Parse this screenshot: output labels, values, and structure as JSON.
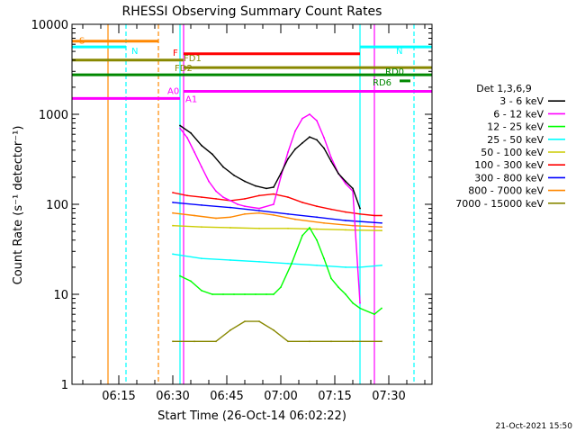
{
  "chart_data": {
    "type": "line",
    "title": "RHESSI Observing Summary Count Rates",
    "xlabel": "Start Time (26-Oct-14 06:02:22)",
    "ylabel": "Count Rate (s⁻¹ detector⁻¹)",
    "y_scale": "log",
    "ylim": [
      1,
      10000
    ],
    "xlim_minutes": [
      "06:02",
      "07:42"
    ],
    "x_ticks": [
      "06:15",
      "06:30",
      "06:45",
      "07:00",
      "07:15",
      "07:30"
    ],
    "y_ticks": [
      "1",
      "10",
      "100",
      "1000",
      "10000"
    ],
    "legend_title": "Det 1,3,6,9",
    "legend_placement": "right, outside plot",
    "series": [
      {
        "name": "3 - 6 keV",
        "color": "#000000",
        "x": [
          "06:32",
          "06:35",
          "06:38",
          "06:41",
          "06:44",
          "06:47",
          "06:50",
          "06:53",
          "06:56",
          "06:58",
          "07:00",
          "07:02",
          "07:04",
          "07:06",
          "07:08",
          "07:10",
          "07:12",
          "07:14",
          "07:16",
          "07:18",
          "07:20",
          "07:22"
        ],
        "y": [
          750,
          620,
          450,
          360,
          260,
          210,
          180,
          160,
          150,
          155,
          220,
          320,
          410,
          480,
          560,
          520,
          420,
          300,
          220,
          180,
          150,
          90
        ]
      },
      {
        "name": "6 - 12 keV",
        "color": "#ff00ff",
        "x": [
          "06:32",
          "06:34",
          "06:36",
          "06:38",
          "06:40",
          "06:42",
          "06:44",
          "06:46",
          "06:48",
          "06:50",
          "06:54",
          "06:58",
          "07:00",
          "07:02",
          "07:04",
          "07:06",
          "07:08",
          "07:10",
          "07:12",
          "07:14",
          "07:16",
          "07:18",
          "07:20",
          "07:22"
        ],
        "y": [
          700,
          550,
          380,
          260,
          180,
          140,
          120,
          110,
          100,
          95,
          90,
          100,
          200,
          380,
          650,
          900,
          1000,
          850,
          550,
          330,
          220,
          170,
          140,
          8
        ]
      },
      {
        "name": "12 - 25 keV",
        "color": "#00ff00",
        "x": [
          "06:32",
          "06:35",
          "06:38",
          "06:41",
          "06:44",
          "06:47",
          "06:50",
          "06:53",
          "06:56",
          "06:58",
          "07:00",
          "07:03",
          "07:06",
          "07:08",
          "07:10",
          "07:12",
          "07:14",
          "07:16",
          "07:18",
          "07:20",
          "07:22",
          "07:26",
          "07:28"
        ],
        "y": [
          16,
          14,
          11,
          10,
          10,
          10,
          10,
          10,
          10,
          10,
          12,
          22,
          45,
          55,
          40,
          25,
          15,
          12,
          10,
          8,
          7,
          6,
          7
        ]
      },
      {
        "name": "25 - 50 keV",
        "color": "#00ffff",
        "x": [
          "06:30",
          "06:38",
          "06:46",
          "06:54",
          "07:02",
          "07:10",
          "07:18",
          "07:22",
          "07:28"
        ],
        "y": [
          28,
          25,
          24,
          23,
          22,
          21,
          20,
          20,
          21
        ]
      },
      {
        "name": "50 - 100 keV",
        "color": "#cccc00",
        "x": [
          "06:30",
          "06:38",
          "06:46",
          "06:54",
          "07:02",
          "07:10",
          "07:18",
          "07:28"
        ],
        "y": [
          58,
          56,
          55,
          54,
          54,
          53,
          52,
          51
        ]
      },
      {
        "name": "100 - 300 keV",
        "color": "#ff0000",
        "x": [
          "06:30",
          "06:34",
          "06:38",
          "06:42",
          "06:46",
          "06:50",
          "06:54",
          "06:58",
          "07:02",
          "07:06",
          "07:10",
          "07:14",
          "07:18",
          "07:22",
          "07:26",
          "07:28"
        ],
        "y": [
          135,
          125,
          120,
          115,
          110,
          115,
          125,
          130,
          120,
          105,
          95,
          88,
          82,
          78,
          75,
          75
        ]
      },
      {
        "name": "300 - 800 keV",
        "color": "#0000ff",
        "x": [
          "06:30",
          "06:38",
          "06:46",
          "06:54",
          "07:02",
          "07:10",
          "07:18",
          "07:28"
        ],
        "y": [
          105,
          98,
          92,
          85,
          78,
          72,
          66,
          62
        ]
      },
      {
        "name": "800 - 7000 keV",
        "color": "#ff8800",
        "x": [
          "06:30",
          "06:36",
          "06:42",
          "06:46",
          "06:50",
          "06:54",
          "06:58",
          "07:04",
          "07:12",
          "07:20",
          "07:28"
        ],
        "y": [
          80,
          75,
          70,
          72,
          78,
          80,
          76,
          68,
          62,
          58,
          56
        ]
      },
      {
        "name": "7000 - 15000 keV",
        "color": "#888800",
        "x": [
          "06:30",
          "06:36",
          "06:42",
          "06:46",
          "06:50",
          "06:54",
          "06:58",
          "07:02",
          "07:08",
          "07:14",
          "07:20",
          "07:28"
        ],
        "y": [
          3,
          3,
          3,
          4,
          5,
          5,
          4,
          3,
          3,
          3,
          3,
          3
        ]
      }
    ],
    "flag_bars": [
      {
        "label": "S",
        "color": "#ff8800",
        "start": "06:02",
        "end": "06:26",
        "level": 6500
      },
      {
        "label": "N",
        "color": "#00ffff",
        "start": "06:02",
        "end": "06:17",
        "level": 5600
      },
      {
        "label": "N",
        "color": "#00ffff",
        "start": "07:22",
        "end": "07:42",
        "level": 5600
      },
      {
        "label": "F",
        "color": "#ff0000",
        "start": "06:33",
        "end": "07:22",
        "level": 4700
      },
      {
        "label": "FD1",
        "color": "#888800",
        "start": "06:02",
        "end": "06:33",
        "level": 4000
      },
      {
        "label": "FD2",
        "color": "#888800",
        "start": "06:33",
        "end": "07:42",
        "level": 3300
      },
      {
        "label": "RD0",
        "color": "#008800",
        "start": "06:02",
        "end": "07:42",
        "level": 2750
      },
      {
        "label": "RD6",
        "color": "#008800",
        "start": "07:33",
        "end": "07:36",
        "level": 2350
      },
      {
        "label": "A0",
        "color": "#ff00ff",
        "start": "06:33",
        "end": "07:42",
        "level": 1800
      },
      {
        "label": "A1",
        "color": "#ff00ff",
        "start": "06:02",
        "end": "06:32",
        "level": 1500
      }
    ],
    "vertical_markers": [
      {
        "time": "06:12",
        "color": "#ff8800",
        "style": "solid"
      },
      {
        "time": "06:17",
        "color": "#00ffff",
        "style": "dashed"
      },
      {
        "time": "06:26",
        "color": "#ff8800",
        "style": "dashed"
      },
      {
        "time": "06:32",
        "color": "#00ffff",
        "style": "solid"
      },
      {
        "time": "06:33",
        "color": "#ff00ff",
        "style": "solid"
      },
      {
        "time": "07:22",
        "color": "#00ffff",
        "style": "solid"
      },
      {
        "time": "07:26",
        "color": "#ff00ff",
        "style": "solid"
      },
      {
        "time": "07:37",
        "color": "#00ffff",
        "style": "dashed"
      }
    ],
    "footer_stamp": "21-Oct-2021 15:50",
    "grid": false
  }
}
